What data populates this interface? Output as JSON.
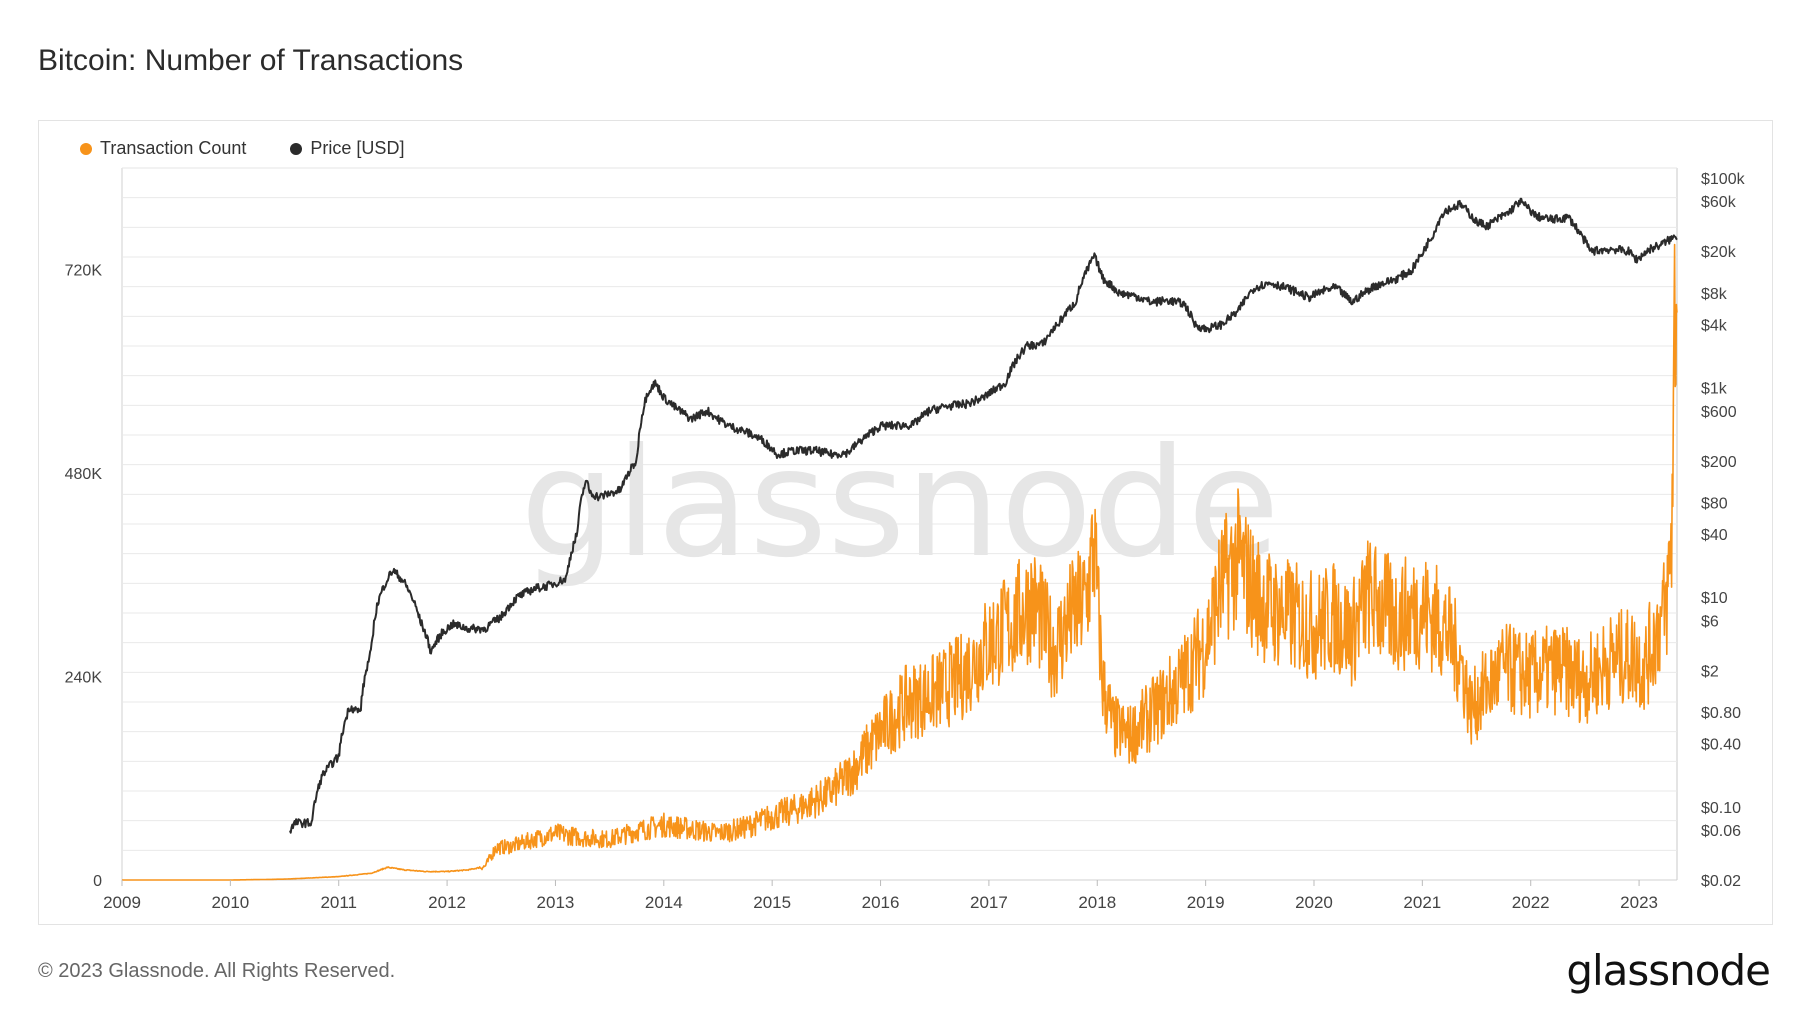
{
  "title": "Bitcoin: Number of Transactions",
  "footer": {
    "copyright": "© 2023 Glassnode. All Rights Reserved.",
    "logo": "glassnode"
  },
  "watermark": "glassnode",
  "colors": {
    "transactions": "#f7931a",
    "price": "#2b2b2b",
    "grid": "#e9e9e9",
    "axis_text": "#444444"
  },
  "chart_data": {
    "type": "line",
    "legend_position": "top-left",
    "grid": true,
    "x_ticks": [
      "2009",
      "2010",
      "2011",
      "2012",
      "2013",
      "2014",
      "2015",
      "2016",
      "2017",
      "2018",
      "2019",
      "2020",
      "2021",
      "2022",
      "2023"
    ],
    "x_range": [
      2009.0,
      2023.35
    ],
    "y_left": {
      "ticks": [
        "0",
        "240K",
        "480K",
        "720K"
      ],
      "tick_values": [
        0,
        240000,
        480000,
        720000
      ],
      "range": [
        0,
        840000
      ]
    },
    "y_right": {
      "scale": "log",
      "ticks": [
        "$100k",
        "$60k",
        "$20k",
        "$8k",
        "$4k",
        "$1k",
        "$600",
        "$200",
        "$80",
        "$40",
        "$10",
        "$6",
        "$2",
        "$0.80",
        "$0.40",
        "$0.10",
        "$0.06",
        "$0.02"
      ],
      "tick_values": [
        100000,
        60000,
        20000,
        8000,
        4000,
        1000,
        600,
        200,
        80,
        40,
        10,
        6,
        2,
        0.8,
        0.4,
        0.1,
        0.06,
        0.02
      ],
      "range": [
        0.02,
        100000
      ]
    },
    "series": [
      {
        "name": "Transaction Count",
        "axis": "left",
        "x": [
          2009.0,
          2010.0,
          2010.5,
          2011.0,
          2011.3,
          2011.45,
          2011.6,
          2011.8,
          2012.0,
          2012.2,
          2012.35,
          2012.45,
          2012.6,
          2012.8,
          2013.0,
          2013.25,
          2013.5,
          2013.75,
          2013.9,
          2014.0,
          2014.25,
          2014.5,
          2014.75,
          2015.0,
          2015.25,
          2015.5,
          2015.6,
          2015.75,
          2016.0,
          2016.25,
          2016.5,
          2016.75,
          2017.0,
          2017.2,
          2017.4,
          2017.6,
          2017.75,
          2017.9,
          2017.97,
          2018.05,
          2018.15,
          2018.3,
          2018.5,
          2018.75,
          2019.0,
          2019.15,
          2019.3,
          2019.45,
          2019.6,
          2019.8,
          2020.0,
          2020.2,
          2020.35,
          2020.5,
          2020.75,
          2021.0,
          2021.2,
          2021.35,
          2021.45,
          2021.55,
          2021.75,
          2022.0,
          2022.25,
          2022.5,
          2022.75,
          2022.95,
          2023.05,
          2023.15,
          2023.25,
          2023.3,
          2023.33,
          2023.35
        ],
        "values": [
          0,
          0,
          1000,
          4000,
          8000,
          15000,
          12000,
          10000,
          10000,
          12000,
          16000,
          38000,
          40000,
          48000,
          55000,
          50000,
          48000,
          58000,
          62000,
          65000,
          60000,
          55000,
          62000,
          75000,
          85000,
          100000,
          110000,
          130000,
          175000,
          210000,
          220000,
          240000,
          280000,
          300000,
          330000,
          270000,
          310000,
          330000,
          400000,
          230000,
          180000,
          170000,
          195000,
          230000,
          280000,
          350000,
          380000,
          340000,
          320000,
          310000,
          300000,
          310000,
          290000,
          335000,
          310000,
          320000,
          300000,
          260000,
          200000,
          220000,
          250000,
          240000,
          250000,
          235000,
          260000,
          265000,
          250000,
          290000,
          320000,
          400000,
          680000,
          670000
        ]
      },
      {
        "name": "Price [USD]",
        "axis": "right",
        "x": [
          2010.55,
          2010.6,
          2010.75,
          2010.85,
          2011.0,
          2011.1,
          2011.2,
          2011.3,
          2011.35,
          2011.45,
          2011.5,
          2011.6,
          2011.75,
          2011.85,
          2011.95,
          2012.05,
          2012.2,
          2012.35,
          2012.5,
          2012.65,
          2012.8,
          2012.95,
          2013.1,
          2013.2,
          2013.28,
          2013.32,
          2013.4,
          2013.6,
          2013.75,
          2013.85,
          2013.92,
          2014.0,
          2014.1,
          2014.25,
          2014.4,
          2014.5,
          2014.6,
          2014.75,
          2014.9,
          2015.05,
          2015.2,
          2015.4,
          2015.55,
          2015.7,
          2015.85,
          2016.0,
          2016.3,
          2016.45,
          2016.6,
          2016.8,
          2016.95,
          2017.15,
          2017.35,
          2017.5,
          2017.65,
          2017.8,
          2017.92,
          2017.97,
          2018.05,
          2018.2,
          2018.35,
          2018.5,
          2018.65,
          2018.8,
          2018.9,
          2019.0,
          2019.15,
          2019.3,
          2019.45,
          2019.6,
          2019.8,
          2019.95,
          2020.1,
          2020.2,
          2020.35,
          2020.55,
          2020.75,
          2020.9,
          2021.0,
          2021.1,
          2021.2,
          2021.35,
          2021.5,
          2021.6,
          2021.8,
          2021.9,
          2022.05,
          2022.2,
          2022.35,
          2022.45,
          2022.55,
          2022.75,
          2022.9,
          2022.98,
          2023.1,
          2023.2,
          2023.35
        ],
        "values": [
          0.06,
          0.07,
          0.07,
          0.2,
          0.3,
          0.9,
          0.8,
          3,
          8,
          15,
          18,
          14,
          6,
          3,
          4.5,
          5.5,
          5,
          5,
          6.5,
          10,
          12,
          13,
          15,
          40,
          130,
          100,
          90,
          105,
          200,
          900,
          1100,
          800,
          650,
          500,
          600,
          500,
          430,
          380,
          320,
          230,
          250,
          250,
          230,
          240,
          330,
          430,
          440,
          600,
          660,
          700,
          800,
          1100,
          2500,
          2600,
          4200,
          6500,
          14000,
          18000,
          11000,
          8000,
          7500,
          6500,
          6800,
          6300,
          4000,
          3600,
          4000,
          5300,
          9000,
          10000,
          8500,
          7200,
          8500,
          9000,
          6500,
          9200,
          10800,
          13000,
          19000,
          29000,
          48000,
          56000,
          38000,
          35000,
          47000,
          60000,
          43000,
          40000,
          42000,
          30000,
          20000,
          21000,
          20000,
          16500,
          21000,
          23000,
          28000
        ]
      }
    ]
  }
}
